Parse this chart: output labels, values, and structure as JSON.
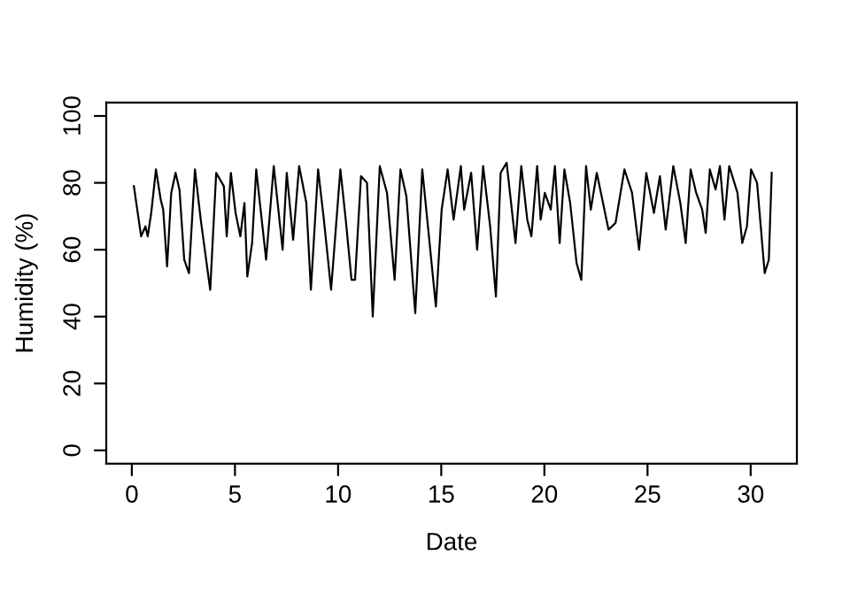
{
  "chart_data": {
    "type": "line",
    "xlabel": "Date",
    "ylabel": "Humidity (%)",
    "xlim": [
      -1.24,
      32.24
    ],
    "ylim": [
      -4,
      104
    ],
    "xticks": [
      0,
      5,
      10,
      15,
      20,
      25,
      30
    ],
    "yticks": [
      0,
      20,
      40,
      60,
      80,
      100
    ],
    "grid": false,
    "marker": "none",
    "line_style": "solid",
    "series": [
      {
        "color": "#000000",
        "x": [
          0.1,
          0.45,
          0.66,
          0.77,
          0.94,
          1.17,
          1.4,
          1.52,
          1.71,
          1.91,
          2.12,
          2.31,
          2.54,
          2.77,
          3.06,
          3.34,
          3.8,
          4.09,
          4.46,
          4.6,
          4.8,
          5.03,
          5.26,
          5.46,
          5.6,
          5.83,
          6.03,
          6.51,
          6.88,
          7.31,
          7.51,
          7.82,
          8.11,
          8.46,
          8.68,
          9.03,
          9.31,
          9.66,
          10.11,
          10.37,
          10.65,
          10.82,
          11.11,
          11.4,
          11.68,
          12.02,
          12.37,
          12.74,
          13.02,
          13.31,
          13.74,
          14.08,
          14.37,
          14.74,
          15.02,
          15.31,
          15.6,
          15.95,
          16.11,
          16.45,
          16.74,
          17.03,
          17.37,
          17.65,
          17.88,
          18.17,
          18.6,
          18.88,
          19.17,
          19.37,
          19.65,
          19.82,
          20.02,
          20.31,
          20.51,
          20.74,
          20.97,
          21.25,
          21.56,
          21.79,
          22.02,
          22.25,
          22.54,
          23.11,
          23.45,
          23.88,
          24.25,
          24.59,
          24.94,
          25.31,
          25.6,
          25.88,
          26.25,
          26.59,
          26.85,
          27.09,
          27.36,
          27.65,
          27.82,
          28.02,
          28.3,
          28.51,
          28.73,
          28.96,
          29.36,
          29.59,
          29.82,
          30.02,
          30.31,
          30.68,
          30.88,
          31.02
        ],
        "values": [
          79,
          64,
          67,
          64,
          71,
          84,
          75,
          72,
          55,
          77,
          83,
          78,
          57,
          53,
          84,
          69,
          48,
          83,
          79,
          64,
          83,
          71,
          64,
          74,
          52,
          62,
          84,
          57,
          85,
          60,
          83,
          63,
          85,
          74,
          48,
          84,
          69,
          48,
          84,
          69,
          51,
          51,
          82,
          80,
          40,
          85,
          77,
          51,
          84,
          76,
          41,
          84,
          66,
          43,
          72,
          84,
          69,
          85,
          72,
          83,
          60,
          85,
          67,
          46,
          83,
          86,
          62,
          85,
          69,
          64,
          85,
          69,
          77,
          72,
          85,
          62,
          84,
          74,
          56,
          51,
          85,
          72,
          83,
          66,
          68,
          84,
          77,
          60,
          83,
          71,
          82,
          66,
          85,
          74,
          62,
          84,
          77,
          72,
          65,
          84,
          78,
          85,
          69,
          85,
          77,
          62,
          67,
          84,
          80,
          53,
          57,
          83
        ]
      }
    ]
  }
}
